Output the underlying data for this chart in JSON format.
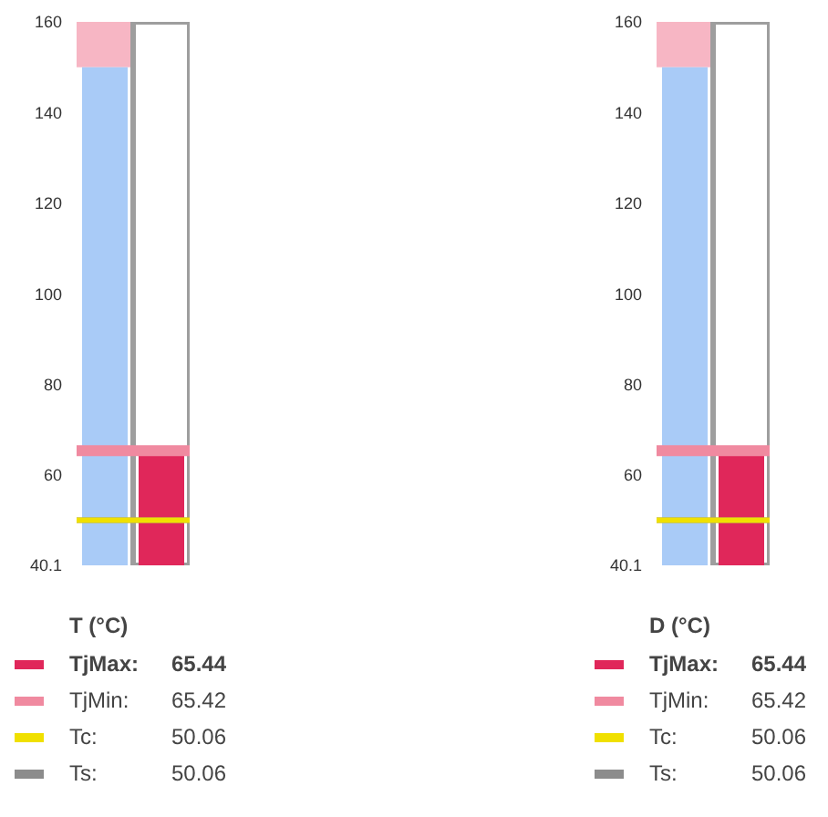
{
  "chart_data": [
    {
      "type": "bar",
      "legend_title": "T (°C)",
      "categories": [
        null,
        null
      ],
      "stacked": true,
      "legend": "bottom",
      "ylim": [
        40.1,
        160
      ],
      "yticks": [
        {
          "value": 40.1,
          "label": "40.1"
        },
        60,
        80,
        100,
        120,
        140,
        160
      ],
      "series": [
        {
          "color": "#a9cbf7",
          "values": [
            150,
            null
          ]
        },
        {
          "name": "TjMax:",
          "color": "#e0275a",
          "values": [
            null,
            65.44
          ]
        }
      ],
      "bands": [
        {
          "axis": "y",
          "from": 150,
          "to": 160,
          "color": "#f7b6c4"
        },
        {
          "axis": "y",
          "from": 40.1,
          "to": 160,
          "color": "#9e9e9e"
        }
      ],
      "ref_lines": [
        {
          "axis": "y",
          "value": 50.06,
          "label": "Ts:",
          "color": "#8c8c8c"
        },
        {
          "axis": "y",
          "value": 50.06,
          "label": "Tc:",
          "color": "#f0e000"
        },
        {
          "axis": "y",
          "value": 65.42,
          "label": "TjMin:",
          "color": "#f08aa0"
        }
      ],
      "annotations": [
        "65.44",
        "65.42",
        "50.06",
        "50.06"
      ]
    },
    {
      "type": "bar",
      "legend_title": "D (°C)",
      "categories": [
        null,
        null
      ],
      "stacked": true,
      "legend": "bottom",
      "ylim": [
        40.1,
        160
      ],
      "yticks": [
        {
          "value": 40.1,
          "label": "40.1"
        },
        60,
        80,
        100,
        120,
        140,
        160
      ],
      "series": [
        {
          "color": "#a9cbf7",
          "values": [
            150,
            null
          ]
        },
        {
          "name": "TjMax:",
          "color": "#e0275a",
          "values": [
            null,
            65.44
          ]
        }
      ],
      "bands": [
        {
          "axis": "y",
          "from": 150,
          "to": 160,
          "color": "#f7b6c4"
        },
        {
          "axis": "y",
          "from": 40.1,
          "to": 160,
          "color": "#9e9e9e"
        }
      ],
      "ref_lines": [
        {
          "axis": "y",
          "value": 50.06,
          "label": "Ts:",
          "color": "#8c8c8c"
        },
        {
          "axis": "y",
          "value": 50.06,
          "label": "Tc:",
          "color": "#f0e000"
        },
        {
          "axis": "y",
          "value": 65.42,
          "label": "TjMin:",
          "color": "#f08aa0"
        }
      ],
      "annotations": [
        "65.44",
        "65.42",
        "50.06",
        "50.06"
      ]
    }
  ]
}
